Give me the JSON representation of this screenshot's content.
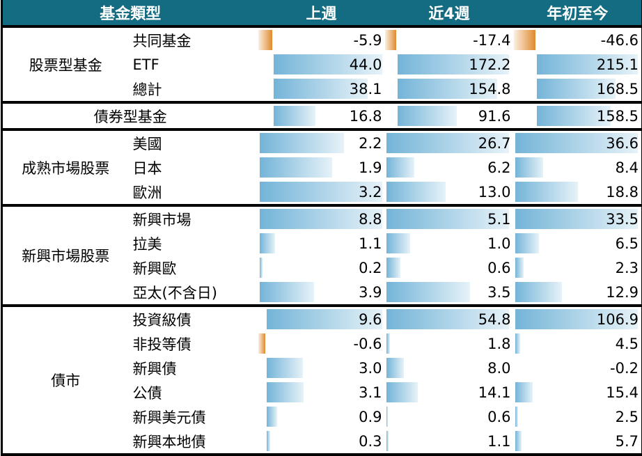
{
  "header": {
    "type": "基金類型",
    "col1": "上週",
    "col2": "近4週",
    "col3": "年初至今"
  },
  "colors": {
    "header_bg": "#146c82",
    "positive_bar": "#74b4d8",
    "negative_bar": "#e08a2e"
  },
  "chart_data": {
    "type": "table",
    "columns": [
      "上週",
      "近4週",
      "年初至今"
    ],
    "sections": [
      {
        "group": "股票型基金",
        "rows": [
          {
            "label": "共同基金",
            "values": [
              "-5.9",
              "-17.4",
              "-46.6"
            ]
          },
          {
            "label": "ETF",
            "values": [
              "44.0",
              "172.2",
              "215.1"
            ]
          },
          {
            "label": "總計",
            "values": [
              "38.1",
              "154.8",
              "168.5"
            ]
          }
        ]
      },
      {
        "group": "債券型基金",
        "rows": [
          {
            "label": "",
            "values": [
              "16.8",
              "91.6",
              "158.5"
            ]
          }
        ]
      },
      {
        "group": "成熟市場股票",
        "rows": [
          {
            "label": "美國",
            "values": [
              "2.2",
              "26.7",
              "36.6"
            ]
          },
          {
            "label": "日本",
            "values": [
              "1.9",
              "6.2",
              "8.4"
            ]
          },
          {
            "label": "歐洲",
            "values": [
              "3.2",
              "13.0",
              "18.8"
            ]
          }
        ]
      },
      {
        "group": "新興市場股票",
        "rows": [
          {
            "label": "新興市場",
            "values": [
              "8.8",
              "5.1",
              "33.5"
            ]
          },
          {
            "label": "拉美",
            "values": [
              "1.1",
              "1.0",
              "6.5"
            ]
          },
          {
            "label": "新興歐",
            "values": [
              "0.2",
              "0.6",
              "2.3"
            ]
          },
          {
            "label": "亞太(不含日)",
            "values": [
              "3.9",
              "3.5",
              "12.9"
            ]
          }
        ]
      },
      {
        "group": "債市",
        "rows": [
          {
            "label": "投資級債",
            "values": [
              "9.6",
              "54.8",
              "106.9"
            ]
          },
          {
            "label": "非投等債",
            "values": [
              "-0.6",
              "1.8",
              "4.5"
            ]
          },
          {
            "label": "新興債",
            "values": [
              "3.0",
              "8.0",
              "-0.2"
            ]
          },
          {
            "label": "公債",
            "values": [
              "3.1",
              "14.1",
              "15.4"
            ]
          },
          {
            "label": "新興美元債",
            "values": [
              "0.9",
              "0.6",
              "2.5"
            ]
          },
          {
            "label": "新興本地債",
            "values": [
              "0.3",
              "1.1",
              "5.7"
            ]
          }
        ]
      }
    ]
  }
}
